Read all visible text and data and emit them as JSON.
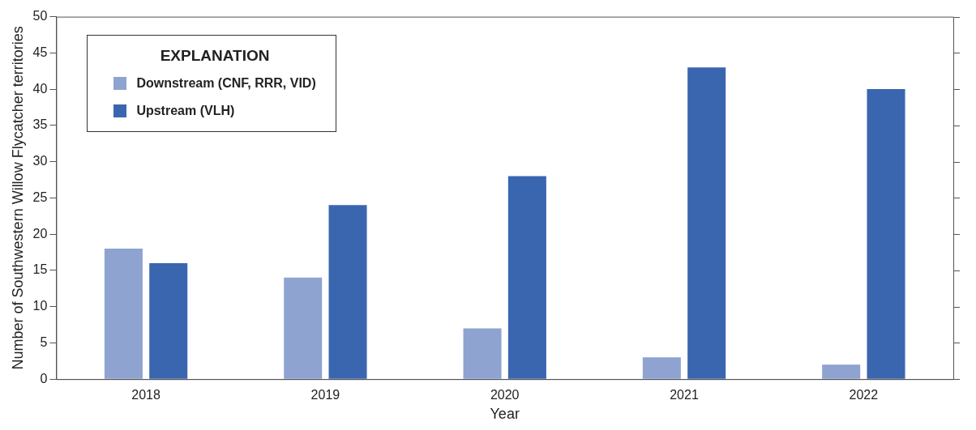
{
  "chart_data": {
    "type": "bar",
    "xlabel": "Year",
    "ylabel": "Number of Southwestern Willow Flycatcher territories",
    "legend_title": "EXPLANATION",
    "categories": [
      "2018",
      "2019",
      "2020",
      "2021",
      "2022"
    ],
    "series": [
      {
        "name": "Downstream (CNF, RRR, VID)",
        "color": "#8fa3d1",
        "values": [
          18,
          14,
          7,
          3,
          2
        ]
      },
      {
        "name": "Upstream (VLH)",
        "color": "#3a66b0",
        "values": [
          16,
          24,
          28,
          43,
          40
        ]
      }
    ],
    "ylim": [
      0,
      50
    ],
    "yticks": [
      0,
      5,
      10,
      15,
      20,
      25,
      30,
      35,
      40,
      45,
      50
    ],
    "grid": false,
    "legend": "top left"
  }
}
